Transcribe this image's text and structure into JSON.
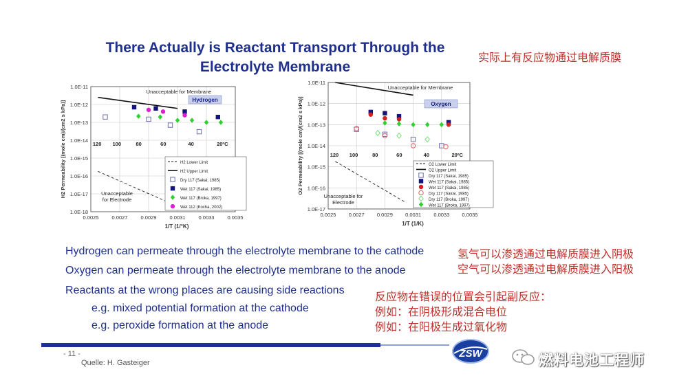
{
  "title_lines": [
    "There Actually is Reactant Transport Through the",
    "Electrolyte Membrane"
  ],
  "title_cn": "实际上有反应物通过电解质膜",
  "bullets": [
    "Hydrogen can permeate through the electrolyte membrane to the cathode",
    "Oxygen can permeate through the electrolyte membrane to the anode",
    "Reactants at the wrong places are causing side reactions",
    "e.g.  mixed potential formation at the cathode",
    "e.g.  peroxide formation at the anode"
  ],
  "bullets_cn": [
    "氢气可以渗透通过电解质膜进入阴极",
    "空气可以渗透通过电解质膜进入阳极",
    "反应物在错误的位置会引起副反应：",
    "例如：在阴极形成混合电位",
    "例如：在阳极生成过氧化物"
  ],
  "footer": {
    "page": "- 11 -",
    "source": "Quelle: H. Gasteiger",
    "logo_text": "ZSW",
    "watermark": "燃料电池工程师"
  },
  "chart_data": [
    {
      "type": "scatter",
      "title": "Hydrogen",
      "xlabel": "1/T (1/°K)",
      "ylabel": "H2 Permeability [(mole cm)/(cm2 s kPa)]",
      "xlim": [
        0.0025,
        0.0035
      ],
      "y_log": true,
      "ylim_exp": [
        -18,
        -11
      ],
      "x_ticks": [
        "0.0025",
        "0.0027",
        "0.0029",
        "0.0031",
        "0.0033",
        "0.0035"
      ],
      "y_ticks": [
        "1.0E-18",
        "1.0E-17",
        "1.0E-16",
        "1.0E-15",
        "1.0E-14",
        "1.0E-13",
        "1.0E-12",
        "1.0E-11"
      ],
      "temp_labels": [
        "120",
        "100",
        "80",
        "60",
        "40",
        "20ºC"
      ],
      "temp_celsius": [
        120,
        100,
        80,
        60,
        40,
        20
      ],
      "upper_region_label": "Unacceptable for Membrane",
      "lower_region_label": [
        "Unacceptable",
        "for Electrode"
      ],
      "upper_limit": [
        [
          0.00255,
          2.5e-12
        ],
        [
          0.0031,
          6e-13
        ]
      ],
      "lower_limit": [
        [
          0.00255,
          1.8e-16
        ],
        [
          0.00305,
          3e-18
        ]
      ],
      "series": [
        {
          "name": "Dry 117 (Sakai, 1985)",
          "marker": "open-square",
          "color": "#6a6fa8",
          "points": [
            [
              0.0026,
              2e-13
            ],
            [
              0.0029,
              1.5e-13
            ],
            [
              0.00305,
              7e-14
            ],
            [
              0.00325,
              3e-14
            ]
          ]
        },
        {
          "name": "Wet 117 (Sakai, 1985)",
          "marker": "square",
          "color": "#14147a",
          "points": [
            [
              0.0028,
              7e-13
            ],
            [
              0.00295,
              6e-13
            ],
            [
              0.00315,
              4e-13
            ],
            [
              0.00338,
              2e-13
            ]
          ]
        },
        {
          "name": "Wet 117 (Broka, 1997)",
          "marker": "diamond",
          "color": "#2fd02f",
          "points": [
            [
              0.00283,
              2.2e-13
            ],
            [
              0.00298,
              2e-13
            ],
            [
              0.0031,
              1.3e-13
            ],
            [
              0.0032,
              1.3e-13
            ],
            [
              0.0033,
              1e-13
            ],
            [
              0.0034,
              1e-13
            ]
          ]
        },
        {
          "name": "Wet 112 (Kocha, 2002)",
          "marker": "circle",
          "color": "#e020d0",
          "points": [
            [
              0.0029,
              5e-13
            ],
            [
              0.003,
              4e-13
            ],
            [
              0.00315,
              2.5e-13
            ]
          ]
        }
      ]
    },
    {
      "type": "scatter",
      "title": "Oxygen",
      "xlabel": "1/T (1/K)",
      "ylabel": "O2 Permeability [(mole cm)/(cm2 s kPa)]",
      "xlim": [
        0.0025,
        0.0035
      ],
      "y_log": true,
      "ylim_exp": [
        -17,
        -11
      ],
      "x_ticks": [
        "0.0025",
        "0.0027",
        "0.0029",
        "0.0031",
        "0.0033",
        "0.0035"
      ],
      "y_ticks": [
        "1.0E-17",
        "1.0E-16",
        "1.0E-15",
        "1.0E-14",
        "1.0E-13",
        "1.0E-12",
        "1.0E-11"
      ],
      "temp_labels": [
        "120",
        "100",
        "80",
        "60",
        "40",
        "20ºC"
      ],
      "temp_celsius": [
        120,
        100,
        80,
        60,
        40,
        20
      ],
      "upper_region_label": "Unacceptable for Membrane",
      "lower_region_label": [
        "Unacceptable for",
        "Electrode"
      ],
      "upper_limit": [
        [
          0.00255,
          1e-11
        ],
        [
          0.0031,
          2.5e-12
        ]
      ],
      "lower_limit": [
        [
          0.00255,
          1.8e-15
        ],
        [
          0.00305,
          2e-17
        ]
      ],
      "series": [
        {
          "name": "Dry 117 (Sakai, 1985)",
          "marker": "open-square",
          "color": "#6a6fa8",
          "points": [
            [
              0.0027,
              6e-14
            ],
            [
              0.0029,
              3.5e-14
            ],
            [
              0.0031,
              2e-14
            ],
            [
              0.0033,
              1e-14
            ]
          ]
        },
        {
          "name": "Wet 117 (Sakai, 1985)",
          "marker": "square",
          "color": "#14147a",
          "points": [
            [
              0.0028,
              4e-13
            ],
            [
              0.0029,
              3.5e-13
            ],
            [
              0.003,
              2.5e-13
            ],
            [
              0.00335,
              1.3e-13
            ]
          ]
        },
        {
          "name": "Wet 117 (Sakai, 1985)",
          "marker": "circle",
          "color": "#d02020",
          "points": [
            [
              0.0028,
              3e-13
            ],
            [
              0.0029,
              2e-13
            ],
            [
              0.003,
              1.8e-13
            ],
            [
              0.00335,
              1e-13
            ]
          ]
        },
        {
          "name": "Dry 117 (Sakai, 1985)",
          "marker": "open-circle",
          "color": "#e06060",
          "points": [
            [
              0.0027,
              6.5e-14
            ],
            [
              0.0029,
              3e-14
            ],
            [
              0.0031,
              1e-14
            ],
            [
              0.00333,
              9e-15
            ]
          ]
        },
        {
          "name": "Dry 117 (Broka, 1997)",
          "marker": "open-diamond",
          "color": "#7ae07a",
          "points": [
            [
              0.00285,
              4e-14
            ],
            [
              0.003,
              3e-14
            ],
            [
              0.0032,
              2e-14
            ]
          ]
        },
        {
          "name": "Wet 117 (Broka, 1997)",
          "marker": "diamond",
          "color": "#2fd02f",
          "points": [
            [
              0.0029,
              1.2e-13
            ],
            [
              0.003,
              1.1e-13
            ],
            [
              0.0031,
              1e-13
            ],
            [
              0.0032,
              1e-13
            ],
            [
              0.0033,
              1e-13
            ]
          ]
        }
      ]
    }
  ]
}
